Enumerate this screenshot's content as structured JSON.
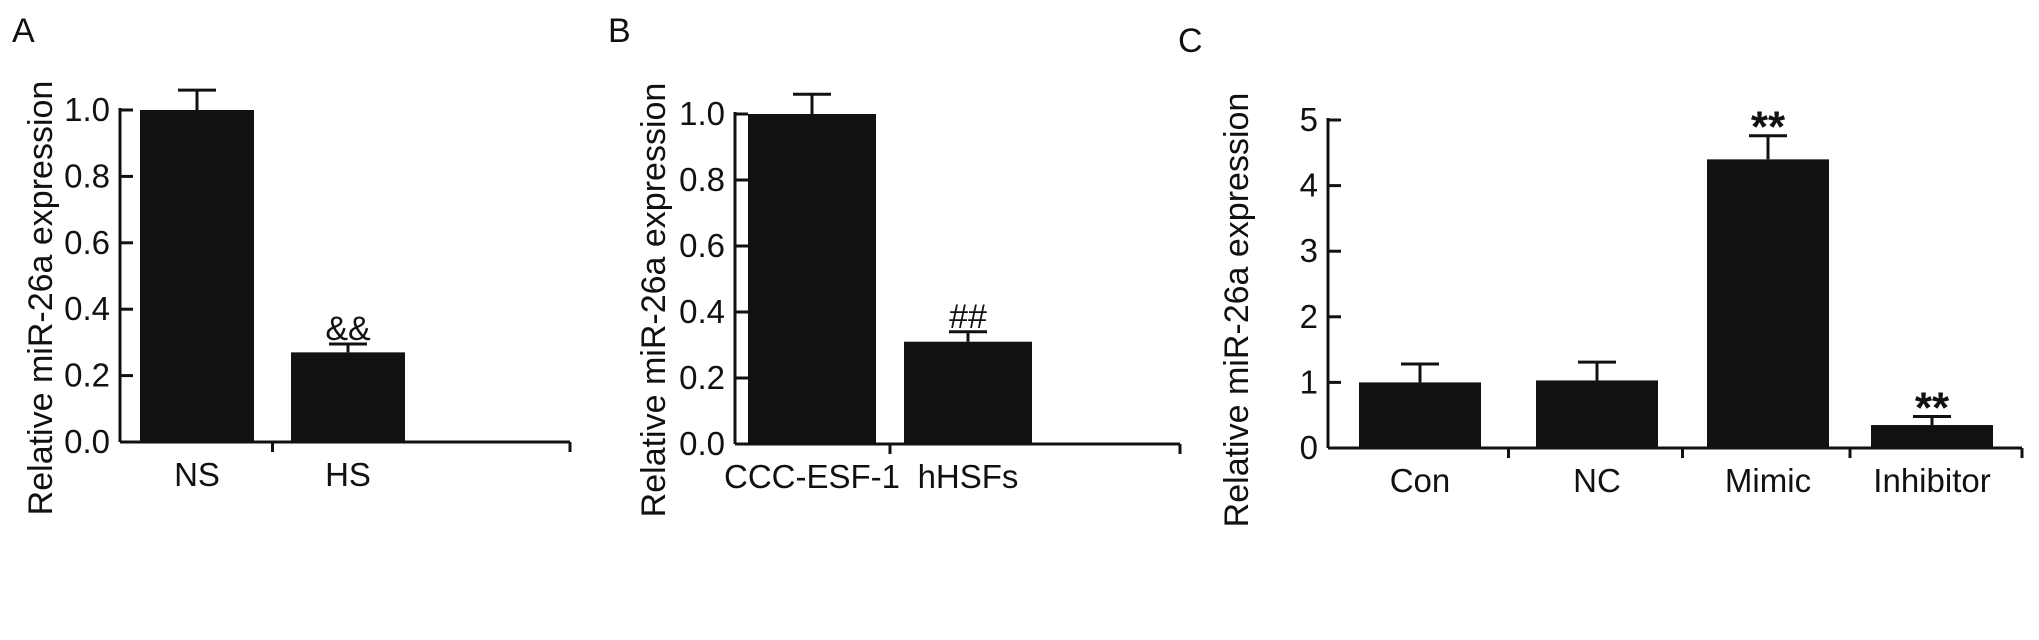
{
  "chart_data": [
    {
      "type": "bar",
      "panel": "A",
      "categories": [
        "NS",
        "HS"
      ],
      "values": [
        1.0,
        0.27
      ],
      "errors": [
        0.06,
        0.025
      ],
      "annotations": [
        "",
        "&&"
      ],
      "ylabel": "Relative miR-26a expression",
      "ylim": [
        0,
        1.0
      ],
      "yticks": [
        "0.0",
        "0.2",
        "0.4",
        "0.6",
        "0.8",
        "1.0"
      ],
      "bar_color": "#111111"
    },
    {
      "type": "bar",
      "panel": "B",
      "categories": [
        "CCC-ESF-1",
        "hHSFs"
      ],
      "values": [
        1.0,
        0.31
      ],
      "errors": [
        0.06,
        0.03
      ],
      "annotations": [
        "",
        "##"
      ],
      "ylabel": "Relative miR-26a expression",
      "ylim": [
        0,
        1.0
      ],
      "yticks": [
        "0.0",
        "0.2",
        "0.4",
        "0.6",
        "0.8",
        "1.0"
      ],
      "bar_color": "#111111"
    },
    {
      "type": "bar",
      "panel": "C",
      "categories": [
        "Con",
        "NC",
        "Mimic",
        "Inhibitor"
      ],
      "values": [
        1.0,
        1.03,
        4.4,
        0.35
      ],
      "errors": [
        0.28,
        0.28,
        0.36,
        0.13
      ],
      "annotations": [
        "",
        "",
        "**",
        "**"
      ],
      "ylabel": "Relative miR-26a expression",
      "ylim": [
        0,
        5
      ],
      "yticks": [
        "0",
        "1",
        "2",
        "3",
        "4",
        "5"
      ],
      "bar_color": "#111111"
    }
  ]
}
